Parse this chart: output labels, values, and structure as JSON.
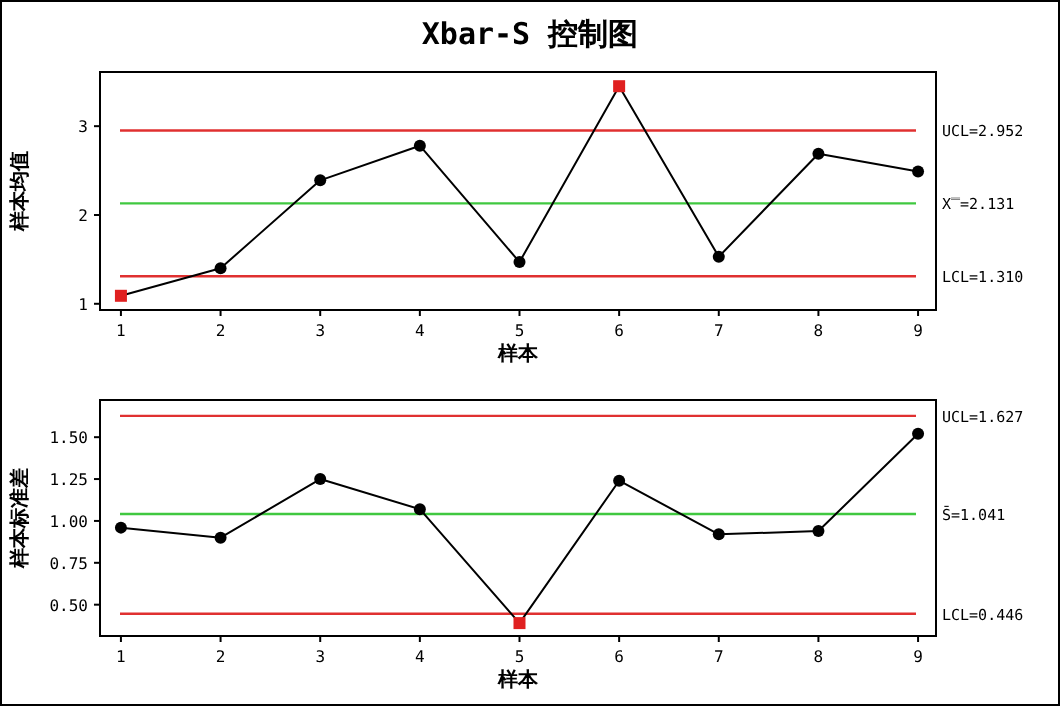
{
  "chart_data": [
    {
      "type": "line",
      "title": "Xbar-S 控制图",
      "xlabel": "样本",
      "ylabel": "样本均值",
      "x": [
        1,
        2,
        3,
        4,
        5,
        6,
        7,
        8,
        9
      ],
      "xlim": [
        0.79,
        9.18
      ],
      "xticks": [
        1,
        2,
        3,
        4,
        5,
        6,
        7,
        8,
        9
      ],
      "ylim": [
        0.93,
        3.61
      ],
      "yticks": [
        1,
        2,
        3
      ],
      "grid": false,
      "series": [
        {
          "type": "line",
          "color": "#000000",
          "marker": "none",
          "values": [
            1.09,
            1.4,
            2.39,
            2.78,
            1.47,
            3.45,
            1.53,
            2.69,
            2.49
          ]
        },
        {
          "type": "scatter",
          "color": "#000000",
          "marker": "circle",
          "x": [
            2,
            3,
            4,
            5,
            7,
            8,
            9
          ],
          "values": [
            1.4,
            2.39,
            2.78,
            1.47,
            1.53,
            2.69,
            2.49
          ]
        },
        {
          "type": "scatter",
          "color": "#e02020",
          "marker": "square",
          "x": [
            1,
            6
          ],
          "values": [
            1.09,
            3.45
          ]
        }
      ],
      "ref_lines": [
        {
          "axis": "y",
          "value": 2.952,
          "label": "UCL=2.952",
          "color": "#e03030"
        },
        {
          "axis": "y",
          "value": 2.131,
          "label": "X̿=2.131",
          "color": "#40c840"
        },
        {
          "axis": "y",
          "value": 1.31,
          "label": "LCL=1.310",
          "color": "#e03030"
        }
      ]
    },
    {
      "type": "line",
      "xlabel": "样本",
      "ylabel": "样本标准差",
      "x": [
        1,
        2,
        3,
        4,
        5,
        6,
        7,
        8,
        9
      ],
      "xlim": [
        0.79,
        9.18
      ],
      "xticks": [
        1,
        2,
        3,
        4,
        5,
        6,
        7,
        8,
        9
      ],
      "ylim": [
        0.313,
        1.722
      ],
      "yticks": [
        {
          "value": 0.5,
          "label": "0.50"
        },
        {
          "value": 0.75,
          "label": "0.75"
        },
        {
          "value": 1,
          "label": "1.00"
        },
        {
          "value": 1.25,
          "label": "1.25"
        },
        {
          "value": 1.5,
          "label": "1.50"
        }
      ],
      "grid": false,
      "series": [
        {
          "type": "line",
          "color": "#000000",
          "marker": "none",
          "values": [
            0.96,
            0.9,
            1.25,
            1.07,
            0.39,
            1.24,
            0.92,
            0.94,
            1.52
          ]
        },
        {
          "type": "scatter",
          "color": "#000000",
          "marker": "circle",
          "x": [
            1,
            2,
            3,
            4,
            6,
            7,
            8,
            9
          ],
          "values": [
            0.96,
            0.9,
            1.25,
            1.07,
            1.24,
            0.92,
            0.94,
            1.52
          ]
        },
        {
          "type": "scatter",
          "color": "#e02020",
          "marker": "square",
          "x": [
            5
          ],
          "values": [
            0.39
          ]
        }
      ],
      "ref_lines": [
        {
          "axis": "y",
          "value": 1.627,
          "label": "UCL=1.627",
          "color": "#e03030"
        },
        {
          "axis": "y",
          "value": 1.041,
          "label": "S̄=1.041",
          "color": "#40c840"
        },
        {
          "axis": "y",
          "value": 0.446,
          "label": "LCL=0.446",
          "color": "#e03030"
        }
      ]
    }
  ]
}
